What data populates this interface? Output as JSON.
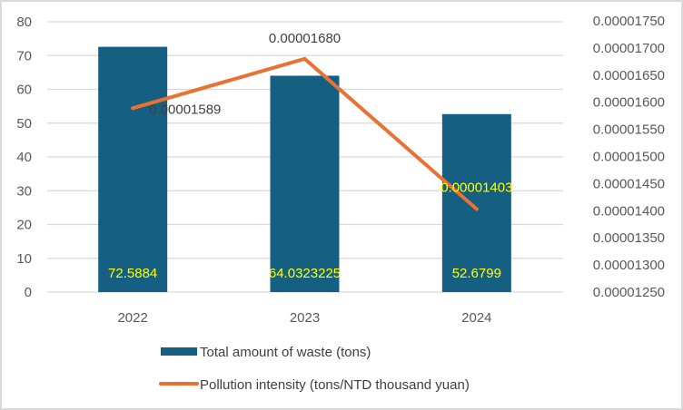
{
  "chart_data": {
    "type": "bar+line",
    "categories": [
      "2022",
      "2023",
      "2024"
    ],
    "series": [
      {
        "name": "Total amount of waste (tons)",
        "type": "bar",
        "axis": "left",
        "values": [
          72.5884,
          64.0323225,
          52.6799
        ],
        "labels": [
          "72.5884",
          "64.0323225",
          "52.6799"
        ],
        "color": "#156082"
      },
      {
        "name": "Pollution intensity (tons/NTD thousand yuan)",
        "type": "line",
        "axis": "right",
        "values": [
          1.589e-05,
          1.68e-05,
          1.403e-05
        ],
        "labels": [
          "0.00001589",
          "0.00001680",
          "0.00001403"
        ],
        "color": "#E97132"
      }
    ],
    "left_axis": {
      "ylim": [
        0,
        80
      ],
      "ticks": [
        0,
        10,
        20,
        30,
        40,
        50,
        60,
        70,
        80
      ],
      "tick_labels": [
        "0",
        "10",
        "20",
        "30",
        "40",
        "50",
        "60",
        "70",
        "80"
      ]
    },
    "right_axis": {
      "ylim": [
        1.25e-05,
        1.75e-05
      ],
      "ticks": [
        1.25e-05,
        1.3e-05,
        1.35e-05,
        1.4e-05,
        1.45e-05,
        1.5e-05,
        1.55e-05,
        1.6e-05,
        1.65e-05,
        1.7e-05,
        1.75e-05
      ],
      "tick_labels": [
        "0.00001250",
        "0.00001300",
        "0.00001350",
        "0.00001400",
        "0.00001450",
        "0.00001500",
        "0.00001550",
        "0.00001600",
        "0.00001650",
        "0.00001700",
        "0.00001750"
      ]
    },
    "grid": true,
    "legend_position": "bottom",
    "colors": {
      "bar_label": "#FFFF00",
      "line_label_colors": [
        "#404040",
        "#404040",
        "#FFFF00"
      ],
      "grid": "#d9d9d9",
      "axis_text": "#595959"
    }
  }
}
